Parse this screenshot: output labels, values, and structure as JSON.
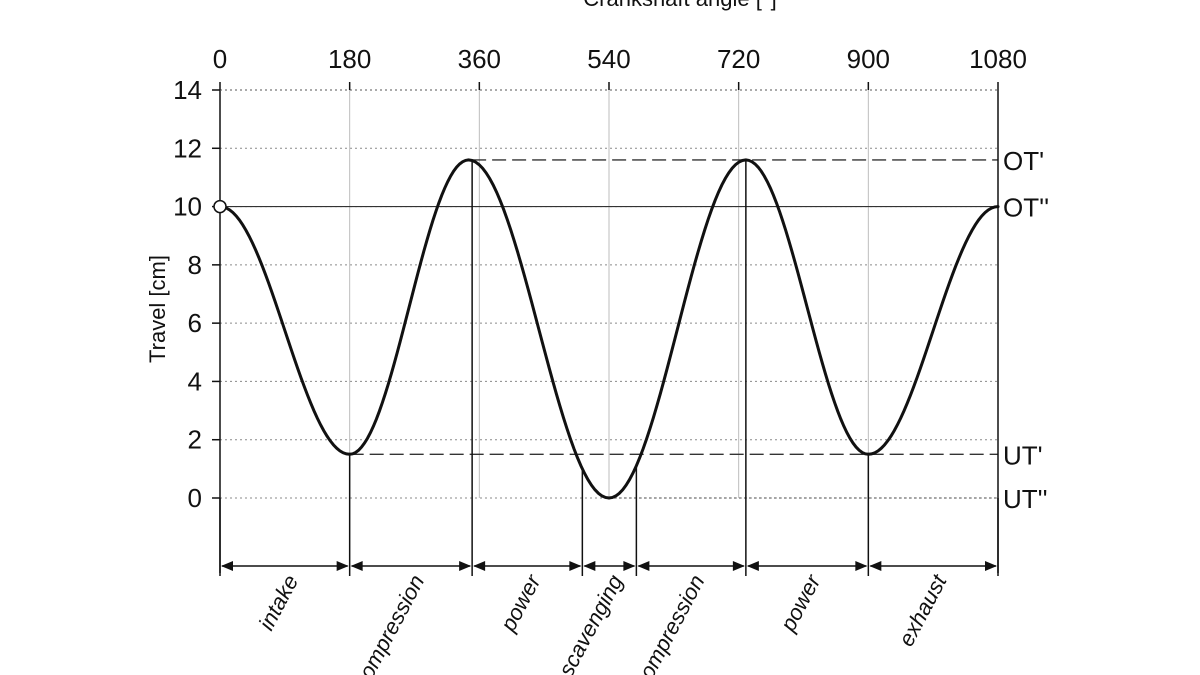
{
  "chart_data": {
    "type": "line",
    "title": "Crankshaft angle [°]",
    "xlabel": "Crankshaft angle [°]",
    "ylabel": "Travel [cm]",
    "xlim": [
      0,
      1080
    ],
    "ylim": [
      0,
      14
    ],
    "x_ticks": [
      "0",
      "180",
      "360",
      "540",
      "720",
      "900",
      "1080"
    ],
    "y_ticks": [
      "14",
      "12",
      "10",
      "8",
      "6",
      "4",
      "2",
      "0"
    ],
    "grid": true,
    "series": [
      {
        "x": [
          0,
          180,
          345,
          540,
          730,
          900,
          1080
        ],
        "values": [
          10,
          1.5,
          11.6,
          0,
          11.6,
          1.5,
          10
        ]
      }
    ],
    "reference_lines": [
      {
        "label": "OT'",
        "value": 11.6
      },
      {
        "label": "OT''",
        "value": 10
      },
      {
        "label": "UT'",
        "value": 1.5
      },
      {
        "label": "UT''",
        "value": 0
      }
    ],
    "phases": [
      {
        "label": "intake",
        "start": 0,
        "end": 180
      },
      {
        "label": "compression",
        "start": 180,
        "end": 350
      },
      {
        "label": "power",
        "start": 350,
        "end": 503
      },
      {
        "label": "scavenging",
        "start": 503,
        "end": 578
      },
      {
        "label": "compression",
        "start": 578,
        "end": 730
      },
      {
        "label": "power",
        "start": 730,
        "end": 900
      },
      {
        "label": "exhaust",
        "start": 900,
        "end": 1080
      }
    ]
  }
}
